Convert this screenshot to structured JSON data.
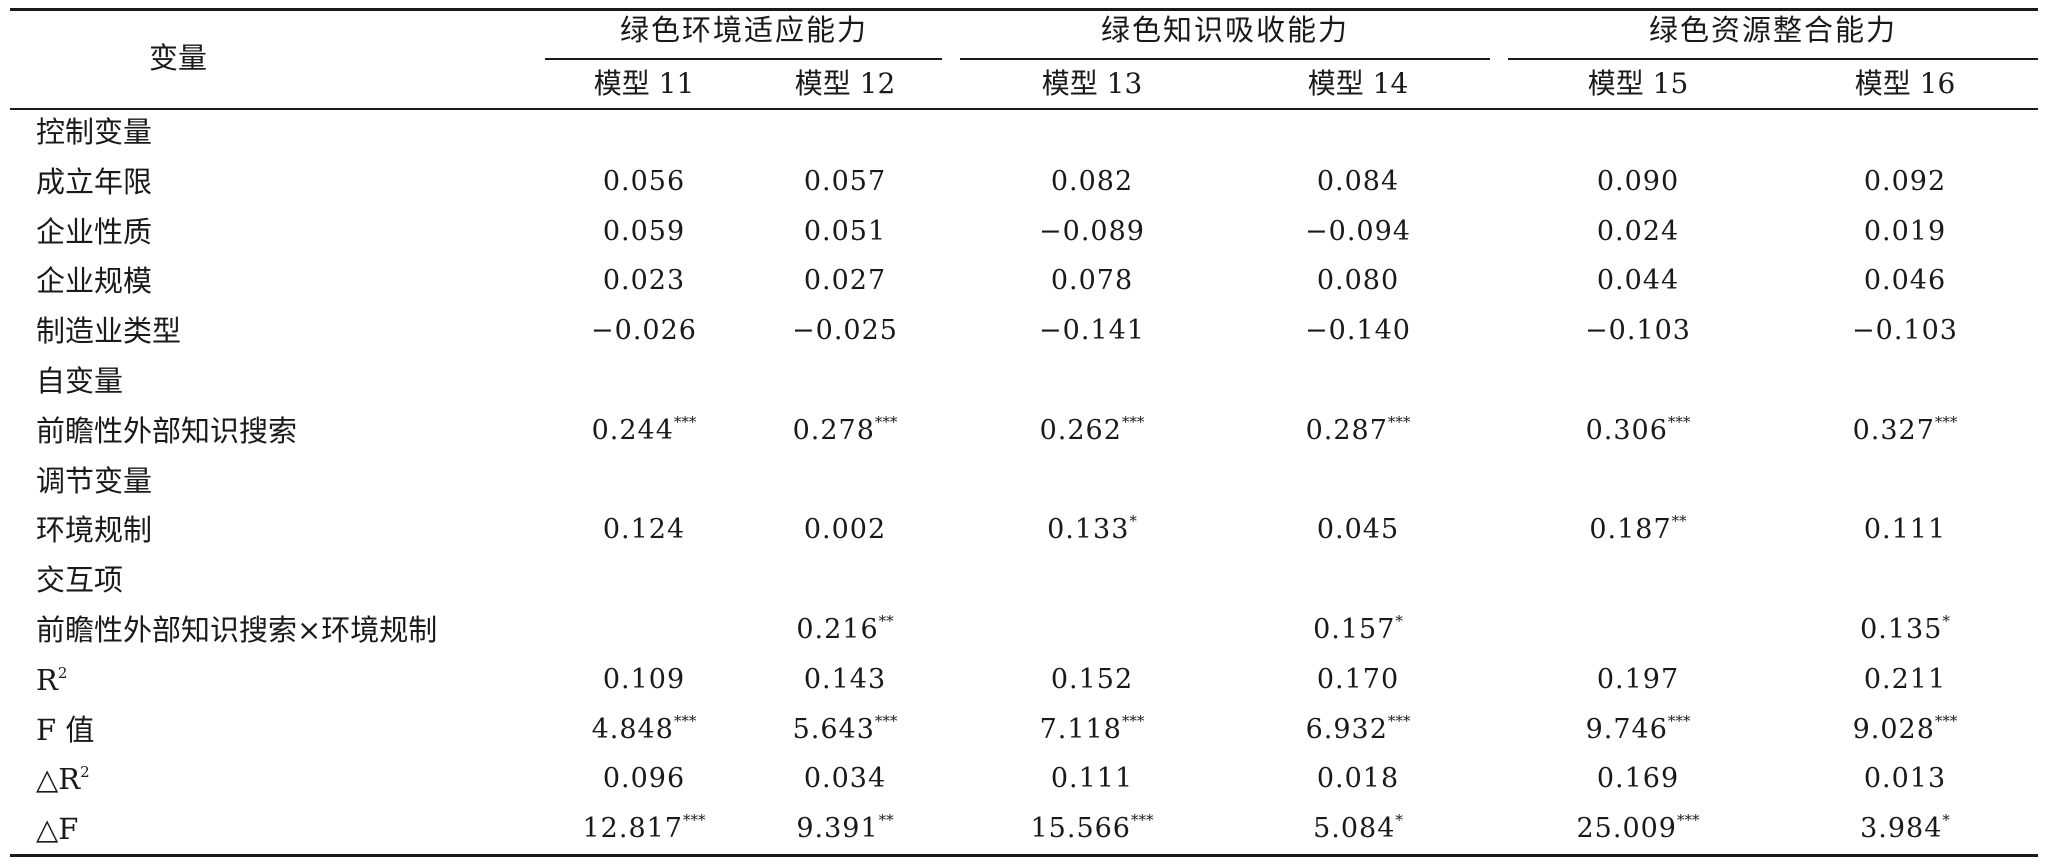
{
  "table": {
    "corner_label": "变量",
    "groups": [
      "绿色环境适应能力",
      "绿色知识吸收能力",
      "绿色资源整合能力"
    ],
    "models": [
      "模型 11",
      "模型 12",
      "模型 13",
      "模型 14",
      "模型 15",
      "模型 16"
    ],
    "rows": [
      {
        "label": "控制变量",
        "cells": [
          "",
          "",
          "",
          "",
          "",
          ""
        ],
        "sig": [
          "",
          "",
          "",
          "",
          "",
          ""
        ]
      },
      {
        "label": "成立年限",
        "cells": [
          "0.056",
          "0.057",
          "0.082",
          "0.084",
          "0.090",
          "0.092"
        ],
        "sig": [
          "",
          "",
          "",
          "",
          "",
          ""
        ]
      },
      {
        "label": "企业性质",
        "cells": [
          "0.059",
          "0.051",
          "−0.089",
          "−0.094",
          "0.024",
          "0.019"
        ],
        "sig": [
          "",
          "",
          "",
          "",
          "",
          ""
        ]
      },
      {
        "label": "企业规模",
        "cells": [
          "0.023",
          "0.027",
          "0.078",
          "0.080",
          "0.044",
          "0.046"
        ],
        "sig": [
          "",
          "",
          "",
          "",
          "",
          ""
        ]
      },
      {
        "label": "制造业类型",
        "cells": [
          "−0.026",
          "−0.025",
          "−0.141",
          "−0.140",
          "−0.103",
          "−0.103"
        ],
        "sig": [
          "",
          "",
          "",
          "",
          "",
          ""
        ]
      },
      {
        "label": "自变量",
        "cells": [
          "",
          "",
          "",
          "",
          "",
          ""
        ],
        "sig": [
          "",
          "",
          "",
          "",
          "",
          ""
        ]
      },
      {
        "label": "前瞻性外部知识搜索",
        "cells": [
          "0.244",
          "0.278",
          "0.262",
          "0.287",
          "0.306",
          "0.327"
        ],
        "sig": [
          "***",
          "***",
          "***",
          "***",
          "***",
          "***"
        ]
      },
      {
        "label": "调节变量",
        "cells": [
          "",
          "",
          "",
          "",
          "",
          ""
        ],
        "sig": [
          "",
          "",
          "",
          "",
          "",
          ""
        ]
      },
      {
        "label": "环境规制",
        "cells": [
          "0.124",
          "0.002",
          "0.133",
          "0.045",
          "0.187",
          "0.111"
        ],
        "sig": [
          "",
          "",
          "*",
          "",
          "**",
          ""
        ]
      },
      {
        "label": "交互项",
        "cells": [
          "",
          "",
          "",
          "",
          "",
          ""
        ],
        "sig": [
          "",
          "",
          "",
          "",
          "",
          ""
        ]
      },
      {
        "label": "前瞻性外部知识搜索×环境规制",
        "cells": [
          "",
          "0.216",
          "",
          "0.157",
          "",
          "0.135"
        ],
        "sig": [
          "",
          "**",
          "",
          "*",
          "",
          "*"
        ]
      },
      {
        "label": "R",
        "label_sup": "2",
        "cells": [
          "0.109",
          "0.143",
          "0.152",
          "0.170",
          "0.197",
          "0.211"
        ],
        "sig": [
          "",
          "",
          "",
          "",
          "",
          ""
        ]
      },
      {
        "label": "F 值",
        "cells": [
          "4.848",
          "5.643",
          "7.118",
          "6.932",
          "9.746",
          "9.028"
        ],
        "sig": [
          "***",
          "***",
          "***",
          "***",
          "***",
          "***"
        ]
      },
      {
        "label": "△R",
        "label_sup": "2",
        "cells": [
          "0.096",
          "0.034",
          "0.111",
          "0.018",
          "0.169",
          "0.013"
        ],
        "sig": [
          "",
          "",
          "",
          "",
          "",
          ""
        ]
      },
      {
        "label": "△F",
        "cells": [
          "12.817",
          "9.391",
          "15.566",
          "5.084",
          "25.009",
          "3.984"
        ],
        "sig": [
          "***",
          "**",
          "***",
          "*",
          "***",
          "*"
        ]
      }
    ]
  }
}
